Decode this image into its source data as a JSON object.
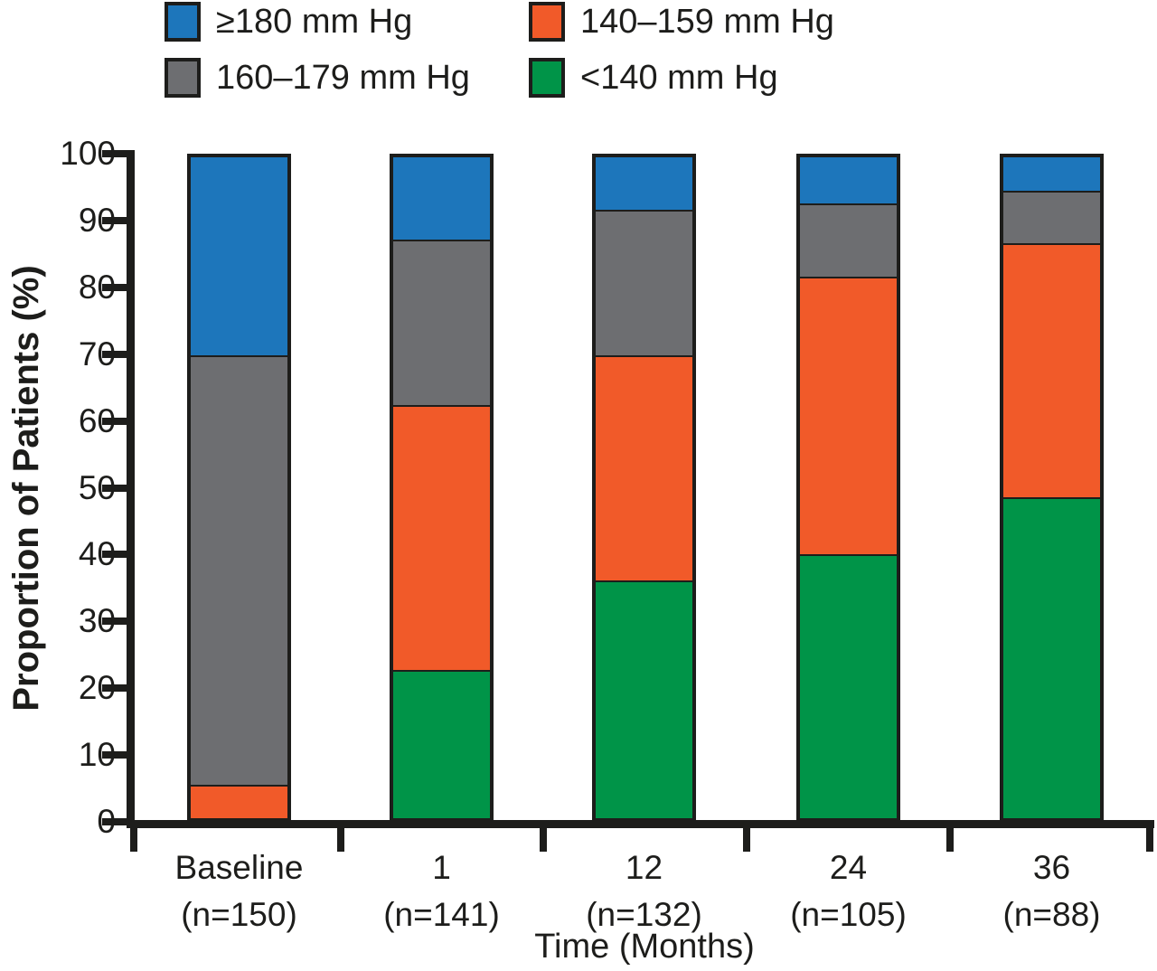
{
  "legend": {
    "items": [
      {
        "label": "≥180 mm Hg",
        "color": "#1d76bb"
      },
      {
        "label": "140–159 mm Hg",
        "color": "#f15a29"
      },
      {
        "label": "160–179 mm Hg",
        "color": "#6d6e71"
      },
      {
        "label": "<140 mm Hg",
        "color": "#009448"
      }
    ]
  },
  "chart_data": {
    "type": "bar",
    "stacked": true,
    "title": "",
    "xlabel": "Time (Months)",
    "ylabel": "Proportion of Patients (%)",
    "ylim": [
      0,
      100
    ],
    "yticks": [
      0,
      10,
      20,
      30,
      40,
      50,
      60,
      70,
      80,
      90,
      100
    ],
    "grid": false,
    "legend_position": "top",
    "categories": [
      "Baseline",
      "1",
      "12",
      "24",
      "36"
    ],
    "category_counts": [
      "(n=150)",
      "(n=141)",
      "(n=132)",
      "(n=105)",
      "(n=88)"
    ],
    "series": [
      {
        "name": "<140 mm Hg",
        "color": "#009448",
        "values": [
          0,
          22.5,
          36,
          40,
          48.5
        ]
      },
      {
        "name": "140–159 mm Hg",
        "color": "#f15a29",
        "values": [
          5,
          40,
          34,
          42,
          38.5
        ]
      },
      {
        "name": "160–179 mm Hg",
        "color": "#6d6e71",
        "values": [
          65,
          25,
          22,
          11,
          8
        ]
      },
      {
        "name": "≥180 mm Hg",
        "color": "#1d76bb",
        "values": [
          30,
          12.5,
          8,
          7,
          5
        ]
      }
    ]
  },
  "colors": {
    "axis": "#1d1d1b",
    "blue": "#1d76bb",
    "orange": "#f15a29",
    "gray": "#6d6e71",
    "green": "#009448"
  }
}
